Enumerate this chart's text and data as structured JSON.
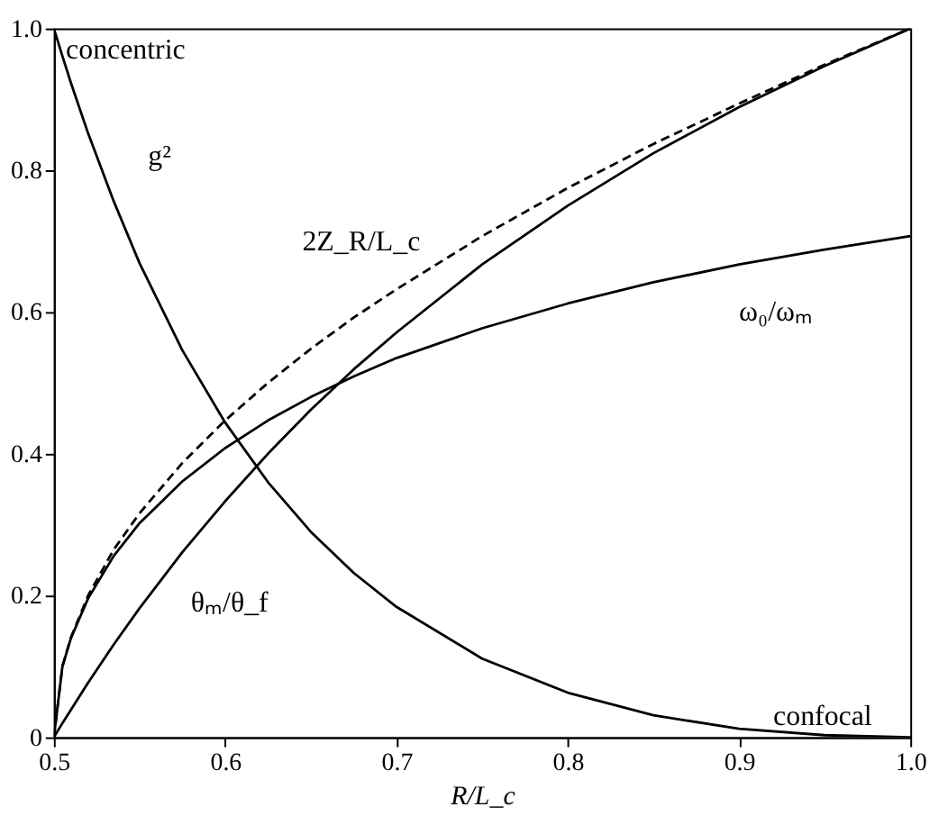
{
  "chart_data": {
    "type": "line",
    "xlabel": "R/L_c",
    "x": [
      0.5,
      0.505,
      0.51,
      0.52,
      0.535,
      0.55,
      0.575,
      0.6,
      0.625,
      0.65,
      0.675,
      0.7,
      0.75,
      0.8,
      0.85,
      0.9,
      0.95,
      1.0
    ],
    "series": [
      {
        "color": "#000000",
        "line_style": "solid",
        "values": [
          1,
          0.961,
          0.923,
          0.852,
          0.756,
          0.669,
          0.546,
          0.444,
          0.36,
          0.29,
          0.232,
          0.184,
          0.111,
          0.063,
          0.031,
          0.012,
          0.003,
          0
        ]
      },
      {
        "color": "#000000",
        "line_style": "dashed",
        "values": [
          0,
          0.1,
          0.141,
          0.2,
          0.265,
          0.316,
          0.387,
          0.447,
          0.5,
          0.548,
          0.592,
          0.632,
          0.707,
          0.775,
          0.837,
          0.894,
          0.949,
          1
        ]
      },
      {
        "color": "#000000",
        "line_style": "solid",
        "values": [
          0,
          0.1,
          0.14,
          0.196,
          0.256,
          0.302,
          0.361,
          0.408,
          0.447,
          0.48,
          0.509,
          0.535,
          0.577,
          0.612,
          0.642,
          0.667,
          0.688,
          0.707
        ]
      },
      {
        "color": "#000000",
        "line_style": "solid",
        "values": [
          0,
          0.02,
          0.039,
          0.077,
          0.131,
          0.182,
          0.261,
          0.333,
          0.4,
          0.462,
          0.519,
          0.571,
          0.667,
          0.75,
          0.824,
          0.889,
          0.947,
          1
        ]
      }
    ],
    "xlim": [
      0.5,
      1.0
    ],
    "xticks": [
      0.5,
      0.6,
      0.7,
      0.8,
      0.9,
      {
        "value": 1.0,
        "label": "1.0"
      }
    ],
    "ylim": [
      0,
      1.0
    ],
    "yticks": [
      0,
      0.2,
      0.4,
      0.6,
      0.8,
      {
        "value": 1.0,
        "label": "1.0"
      }
    ],
    "grid": false,
    "marker": "none",
    "annotations": [
      "concentric",
      "confocal",
      "g²",
      "2Z_R/L_c",
      "ω₀/ωₘ",
      "θₘ/θ_f"
    ]
  }
}
